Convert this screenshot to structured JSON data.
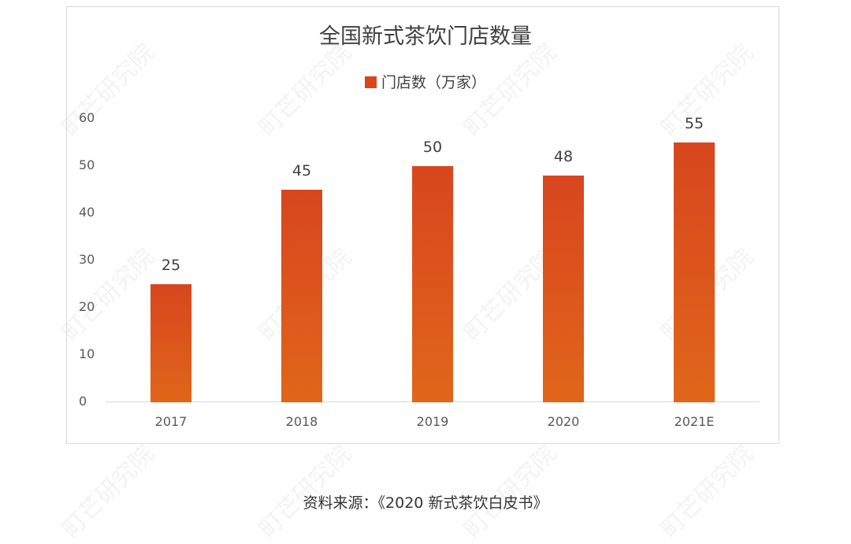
{
  "watermark": "町芒研究院",
  "chart_data": {
    "type": "bar",
    "title": "全国新式茶饮门店数量",
    "legend": [
      "门店数（万家）"
    ],
    "categories": [
      "2017",
      "2018",
      "2019",
      "2020",
      "2021E"
    ],
    "series": [
      {
        "name": "门店数（万家）",
        "values": [
          25,
          45,
          50,
          48,
          55
        ]
      }
    ],
    "value_labels": [
      "25",
      "45",
      "50",
      "48",
      "55"
    ],
    "yticks": [
      "0",
      "10",
      "20",
      "30",
      "40",
      "50",
      "60"
    ],
    "ylim": [
      0,
      60
    ],
    "xlabel": "",
    "ylabel": "",
    "grid": false,
    "legend_position": "top",
    "bar_color_top": "#d8461e",
    "bar_color_bottom": "#e0661a"
  },
  "source": "资料来源：《2020 新式茶饮白皮书》"
}
